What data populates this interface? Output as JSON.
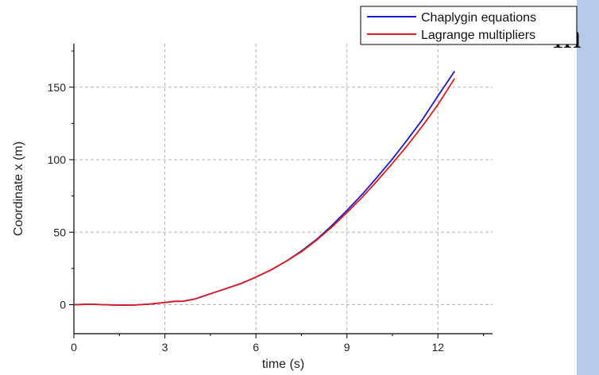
{
  "side_fragment": {
    "text": "in",
    "panel_color": "#b6c9e8"
  },
  "chart_data": {
    "type": "line",
    "title": "",
    "xlabel": "time (s)",
    "ylabel": "Coordinate x (m)",
    "xlim": [
      0,
      13.8
    ],
    "ylim": [
      -20,
      180
    ],
    "xticks": [
      0,
      3,
      6,
      9,
      12
    ],
    "yticks": [
      0,
      50,
      100,
      150
    ],
    "x_tick_labels": [
      "0",
      "3",
      "6",
      "9",
      "12"
    ],
    "y_tick_labels": [
      "0",
      "50",
      "100",
      "150"
    ],
    "grid": true,
    "legend_position": "top-right",
    "series": [
      {
        "name": "Chaplygin equations",
        "color": "#1a1acc",
        "x": [
          0,
          0.5,
          1,
          1.5,
          2,
          2.5,
          3,
          3.3,
          3.6,
          4,
          4.5,
          5,
          5.5,
          6,
          6.5,
          7,
          7.5,
          8,
          8.5,
          9,
          9.5,
          10,
          10.5,
          11,
          11.5,
          12,
          12.55
        ],
        "y": [
          0,
          0.3,
          0,
          -0.3,
          -0.2,
          0.4,
          1.5,
          2.3,
          2.4,
          4,
          7.5,
          11,
          14.5,
          19,
          24,
          30,
          37,
          45,
          54.5,
          65,
          76,
          88,
          100.5,
          114,
          128,
          144,
          161
        ]
      },
      {
        "name": "Lagrange multipliers",
        "color": "#e01a1a",
        "x": [
          0,
          0.5,
          1,
          1.5,
          2,
          2.5,
          3,
          3.3,
          3.6,
          4,
          4.5,
          5,
          5.5,
          6,
          6.5,
          7,
          7.5,
          8,
          8.5,
          9,
          9.5,
          10,
          10.5,
          11,
          11.5,
          12,
          12.55
        ],
        "y": [
          0,
          0.3,
          0,
          -0.3,
          -0.2,
          0.4,
          1.5,
          2.3,
          2.4,
          4,
          7.5,
          11,
          14.5,
          19,
          24,
          30,
          36.5,
          44.5,
          53.5,
          63.5,
          74,
          85.5,
          97.5,
          110,
          123.5,
          138,
          156
        ]
      }
    ]
  }
}
